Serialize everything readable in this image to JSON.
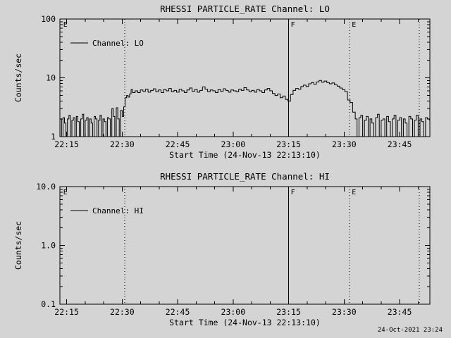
{
  "page": {
    "background": "#d4d4d4",
    "foreground": "#000000",
    "timestamp": "24-Oct-2021 23:24"
  },
  "chart_data": [
    {
      "type": "line",
      "panel": "LO",
      "title": "RHESSI PARTICLE_RATE Channel: LO",
      "xlabel": "Start Time (24-Nov-13 22:13:10)",
      "ylabel": "Counts/sec",
      "x_range_minutes": [
        13.17,
        113.17
      ],
      "x_ticks": [
        {
          "t": 15,
          "label": "22:15"
        },
        {
          "t": 30,
          "label": "22:30"
        },
        {
          "t": 45,
          "label": "22:45"
        },
        {
          "t": 60,
          "label": "23:00"
        },
        {
          "t": 75,
          "label": "23:15"
        },
        {
          "t": 90,
          "label": "23:30"
        },
        {
          "t": 105,
          "label": "23:45"
        }
      ],
      "x_minor_step_minutes": 5,
      "y_scale": "log",
      "y_range": [
        1,
        100
      ],
      "y_ticks": [
        {
          "v": 1,
          "label": "1"
        },
        {
          "v": 10,
          "label": "10"
        },
        {
          "v": 100,
          "label": "100"
        }
      ],
      "legend": {
        "label": "Channel: LO"
      },
      "events": [
        {
          "t": 13.5,
          "style": "none",
          "label": "E"
        },
        {
          "t": 30.7,
          "style": "dotted",
          "label": ""
        },
        {
          "t": 75,
          "style": "solid",
          "label": "F"
        },
        {
          "t": 91.5,
          "style": "dotted",
          "label": "E"
        },
        {
          "t": 110.3,
          "style": "dotted",
          "label": ""
        }
      ],
      "series": [
        {
          "name": "Channel: LO",
          "points": [
            [
              13.2,
              2
            ],
            [
              13.6,
              1
            ],
            [
              14,
              2.1
            ],
            [
              14.4,
              1.7
            ],
            [
              14.8,
              1
            ],
            [
              15.2,
              2
            ],
            [
              15.6,
              2.3
            ],
            [
              16,
              1
            ],
            [
              16.4,
              1.9
            ],
            [
              16.8,
              2.1
            ],
            [
              17.2,
              1
            ],
            [
              17.6,
              2.2
            ],
            [
              18,
              1.8
            ],
            [
              18.4,
              1
            ],
            [
              18.8,
              2
            ],
            [
              19.2,
              2.4
            ],
            [
              19.6,
              1
            ],
            [
              20,
              1.9
            ],
            [
              20.4,
              2.1
            ],
            [
              20.8,
              1
            ],
            [
              21.2,
              2
            ],
            [
              21.6,
              1.7
            ],
            [
              22,
              1
            ],
            [
              22.4,
              2.2
            ],
            [
              22.8,
              2
            ],
            [
              23.2,
              1
            ],
            [
              23.6,
              1.9
            ],
            [
              24,
              2.3
            ],
            [
              24.4,
              1
            ],
            [
              24.8,
              2
            ],
            [
              25.2,
              1.8
            ],
            [
              25.6,
              1
            ],
            [
              26,
              2.1
            ],
            [
              26.4,
              2
            ],
            [
              26.8,
              1
            ],
            [
              27.2,
              3
            ],
            [
              27.6,
              2.2
            ],
            [
              28,
              1
            ],
            [
              28.4,
              3.1
            ],
            [
              28.8,
              2
            ],
            [
              29.2,
              1
            ],
            [
              29.6,
              2.8
            ],
            [
              30,
              2.2
            ],
            [
              30.4,
              3.2
            ],
            [
              30.8,
              4.6
            ],
            [
              31.2,
              5
            ],
            [
              31.6,
              4.7
            ],
            [
              32,
              5.3
            ],
            [
              32.4,
              6.3
            ],
            [
              32.8,
              5.6
            ],
            [
              33.5,
              6
            ],
            [
              34.2,
              5.6
            ],
            [
              34.9,
              6.2
            ],
            [
              35.6,
              5.9
            ],
            [
              36.3,
              6.4
            ],
            [
              37,
              5.7
            ],
            [
              37.7,
              6.1
            ],
            [
              38.4,
              6.5
            ],
            [
              39.1,
              5.8
            ],
            [
              39.8,
              6.2
            ],
            [
              40.5,
              5.6
            ],
            [
              41.2,
              6.3
            ],
            [
              41.9,
              6
            ],
            [
              42.6,
              6.6
            ],
            [
              43.3,
              5.8
            ],
            [
              44,
              6.1
            ],
            [
              44.7,
              5.7
            ],
            [
              45.4,
              6.4
            ],
            [
              46.1,
              6
            ],
            [
              46.8,
              5.6
            ],
            [
              47.5,
              6.2
            ],
            [
              48.2,
              6.7
            ],
            [
              48.9,
              5.9
            ],
            [
              49.6,
              6.3
            ],
            [
              50.3,
              5.7
            ],
            [
              51,
              6.1
            ],
            [
              51.7,
              7
            ],
            [
              52.4,
              6.4
            ],
            [
              53.1,
              5.8
            ],
            [
              53.8,
              6.2
            ],
            [
              54.5,
              6
            ],
            [
              55.2,
              5.6
            ],
            [
              55.9,
              6.3
            ],
            [
              56.6,
              5.9
            ],
            [
              57.3,
              6.5
            ],
            [
              58,
              6.1
            ],
            [
              58.7,
              5.7
            ],
            [
              59.4,
              6.2
            ],
            [
              60.1,
              6
            ],
            [
              60.8,
              5.8
            ],
            [
              61.5,
              6.4
            ],
            [
              62.2,
              6.1
            ],
            [
              62.9,
              6.8
            ],
            [
              63.6,
              6.2
            ],
            [
              64.3,
              5.8
            ],
            [
              65,
              6.1
            ],
            [
              65.7,
              5.7
            ],
            [
              66.4,
              6.3
            ],
            [
              67.1,
              6
            ],
            [
              67.8,
              5.6
            ],
            [
              68.5,
              6.2
            ],
            [
              69.2,
              6.6
            ],
            [
              69.9,
              6
            ],
            [
              70.6,
              5.4
            ],
            [
              71.3,
              5
            ],
            [
              72,
              5.3
            ],
            [
              72.7,
              4.6
            ],
            [
              73.4,
              4.9
            ],
            [
              74.1,
              4.3
            ],
            [
              74.8,
              4
            ],
            [
              75.5,
              5.2
            ],
            [
              76.2,
              6.1
            ],
            [
              76.9,
              6.6
            ],
            [
              77.6,
              6.4
            ],
            [
              78.3,
              7.1
            ],
            [
              79,
              7.5
            ],
            [
              79.7,
              7.1
            ],
            [
              80.4,
              7.9
            ],
            [
              81.1,
              8.3
            ],
            [
              81.8,
              7.8
            ],
            [
              82.5,
              8.5
            ],
            [
              83.2,
              9
            ],
            [
              83.9,
              8.4
            ],
            [
              84.6,
              8.8
            ],
            [
              85.3,
              8.3
            ],
            [
              86,
              7.9
            ],
            [
              86.7,
              8.2
            ],
            [
              87.4,
              7.6
            ],
            [
              88.1,
              7.2
            ],
            [
              88.8,
              6.7
            ],
            [
              89.5,
              6.3
            ],
            [
              90.2,
              5.8
            ],
            [
              90.9,
              4.2
            ],
            [
              91.6,
              3.8
            ],
            [
              92.3,
              2.6
            ],
            [
              93,
              2
            ],
            [
              93.5,
              1
            ],
            [
              94,
              2.1
            ],
            [
              94.5,
              2.3
            ],
            [
              95,
              1
            ],
            [
              95.5,
              1.9
            ],
            [
              96,
              2.2
            ],
            [
              96.5,
              1
            ],
            [
              97,
              2
            ],
            [
              97.5,
              1.7
            ],
            [
              98,
              1
            ],
            [
              98.5,
              2.1
            ],
            [
              99,
              2.4
            ],
            [
              99.5,
              1
            ],
            [
              100,
              1.9
            ],
            [
              100.5,
              2
            ],
            [
              101,
              1
            ],
            [
              101.5,
              2.2
            ],
            [
              102,
              1.8
            ],
            [
              102.5,
              1
            ],
            [
              103,
              2
            ],
            [
              103.5,
              2.3
            ],
            [
              104,
              1
            ],
            [
              104.5,
              1.9
            ],
            [
              105,
              2.1
            ],
            [
              105.5,
              1
            ],
            [
              106,
              2
            ],
            [
              106.5,
              1.7
            ],
            [
              107,
              1
            ],
            [
              107.5,
              2.2
            ],
            [
              108,
              2
            ],
            [
              108.5,
              1
            ],
            [
              109,
              1.9
            ],
            [
              109.5,
              2.3
            ],
            [
              110,
              1
            ],
            [
              110.5,
              2
            ],
            [
              111,
              1.8
            ],
            [
              111.5,
              1
            ],
            [
              112,
              2.1
            ],
            [
              112.5,
              2
            ],
            [
              113,
              1.9
            ]
          ]
        }
      ]
    },
    {
      "type": "line",
      "panel": "HI",
      "title": "RHESSI PARTICLE_RATE Channel: HI",
      "xlabel": "Start Time (24-Nov-13 22:13:10)",
      "ylabel": "Counts/sec",
      "x_range_minutes": [
        13.17,
        113.17
      ],
      "x_ticks": [
        {
          "t": 15,
          "label": "22:15"
        },
        {
          "t": 30,
          "label": "22:30"
        },
        {
          "t": 45,
          "label": "22:45"
        },
        {
          "t": 60,
          "label": "23:00"
        },
        {
          "t": 75,
          "label": "23:15"
        },
        {
          "t": 90,
          "label": "23:30"
        },
        {
          "t": 105,
          "label": "23:45"
        }
      ],
      "x_minor_step_minutes": 5,
      "y_scale": "log",
      "y_range": [
        0.1,
        10
      ],
      "y_ticks": [
        {
          "v": 0.1,
          "label": "0.1"
        },
        {
          "v": 1,
          "label": "1.0"
        },
        {
          "v": 10,
          "label": "10.0"
        }
      ],
      "legend": {
        "label": "Channel: HI"
      },
      "events": [
        {
          "t": 13.5,
          "style": "none",
          "label": "E"
        },
        {
          "t": 30.7,
          "style": "dotted",
          "label": ""
        },
        {
          "t": 75,
          "style": "solid",
          "label": "F"
        },
        {
          "t": 91.5,
          "style": "dotted",
          "label": "E"
        },
        {
          "t": 110.3,
          "style": "dotted",
          "label": ""
        }
      ],
      "series": [
        {
          "name": "Channel: HI",
          "points": []
        }
      ]
    }
  ]
}
